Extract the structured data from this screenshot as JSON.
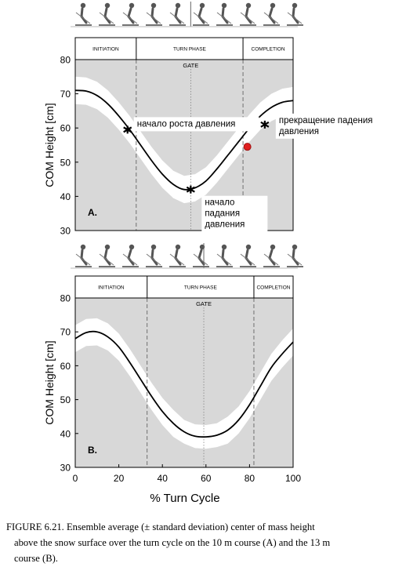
{
  "figure": {
    "caption_lines": [
      "FIGURE 6.21.  Ensemble average (± standard deviation) center of mass height",
      "above the snow surface over the turn cycle on the 10 m course (A) and the 13 m",
      "course (B)."
    ],
    "x_axis_title": "% Turn Cycle"
  },
  "colors": {
    "plot_background": "#d8d8d8",
    "sd_band": "#ffffff",
    "mean_line": "#000000",
    "red_marker": "#e02020",
    "phase_divider": "#555555"
  },
  "chart_data": [
    {
      "type": "line",
      "panel_label": "A.",
      "ylabel": "COM Height [cm]",
      "ylim": [
        30,
        80
      ],
      "yticks": [
        "30",
        "40",
        "50",
        "60",
        "70",
        "80"
      ],
      "xlim": [
        0,
        100
      ],
      "grid": false,
      "phases": [
        {
          "label": "INITIATION",
          "start": 0,
          "end": 28
        },
        {
          "label": "TURN PHASE",
          "start": 28,
          "end": 77
        },
        {
          "label": "COMPLETION",
          "start": 77,
          "end": 100
        }
      ],
      "gate": {
        "label": "GATE",
        "x": 53
      },
      "series": [
        {
          "x": [
            0,
            5,
            10,
            15,
            20,
            25,
            30,
            35,
            40,
            45,
            50,
            55,
            60,
            65,
            70,
            75,
            80,
            85,
            90,
            95,
            100
          ],
          "mean": [
            71,
            70.8,
            69.5,
            67,
            63.5,
            59.5,
            55,
            50.5,
            46.5,
            43.5,
            42,
            42.5,
            44.5,
            48,
            52,
            56,
            60,
            63.5,
            66,
            67.5,
            68
          ],
          "sd": [
            4,
            4,
            4,
            4,
            4,
            4,
            4,
            4,
            4,
            4,
            4,
            4,
            4,
            4,
            4,
            4,
            4,
            4,
            4,
            4,
            4
          ]
        }
      ],
      "markers": [
        {
          "x": 24,
          "y": 59.5,
          "label": "начало роста давления",
          "kind": "star"
        },
        {
          "x": 53,
          "y": 42,
          "label_lines": [
            "начало",
            "падания",
            "давления"
          ],
          "kind": "star"
        },
        {
          "x": 87,
          "y": 61,
          "label_lines": [
            "прекращение падения",
            "давления"
          ],
          "kind": "star"
        },
        {
          "x": 79,
          "y": 54.5,
          "label": "",
          "kind": "red-dot"
        }
      ]
    },
    {
      "type": "line",
      "panel_label": "B.",
      "ylabel": "COM Height [cm]",
      "ylim": [
        30,
        80
      ],
      "yticks": [
        "30",
        "40",
        "50",
        "60",
        "70",
        "80"
      ],
      "xlim": [
        0,
        100
      ],
      "xticks": [
        "0",
        "20",
        "40",
        "60",
        "80",
        "100"
      ],
      "grid": false,
      "phases": [
        {
          "label": "INITIATION",
          "start": 0,
          "end": 33
        },
        {
          "label": "TURN PHASE",
          "start": 33,
          "end": 82
        },
        {
          "label": "COMPLETION",
          "start": 82,
          "end": 100
        }
      ],
      "gate": {
        "label": "GATE",
        "x": 59
      },
      "series": [
        {
          "x": [
            0,
            5,
            10,
            15,
            20,
            25,
            30,
            35,
            40,
            45,
            50,
            55,
            60,
            65,
            70,
            75,
            80,
            85,
            90,
            95,
            100
          ],
          "mean": [
            68,
            69.8,
            70,
            68.5,
            65.5,
            61,
            56,
            51,
            46.5,
            43,
            40.5,
            39.2,
            39,
            39.5,
            41,
            44,
            48.5,
            54,
            59.5,
            63.5,
            67
          ],
          "sd": [
            4,
            4,
            4,
            4,
            4,
            4,
            4,
            4,
            4,
            4,
            3.5,
            3.5,
            3.5,
            3.5,
            4,
            4,
            4,
            4,
            4,
            4,
            4
          ]
        }
      ]
    }
  ]
}
